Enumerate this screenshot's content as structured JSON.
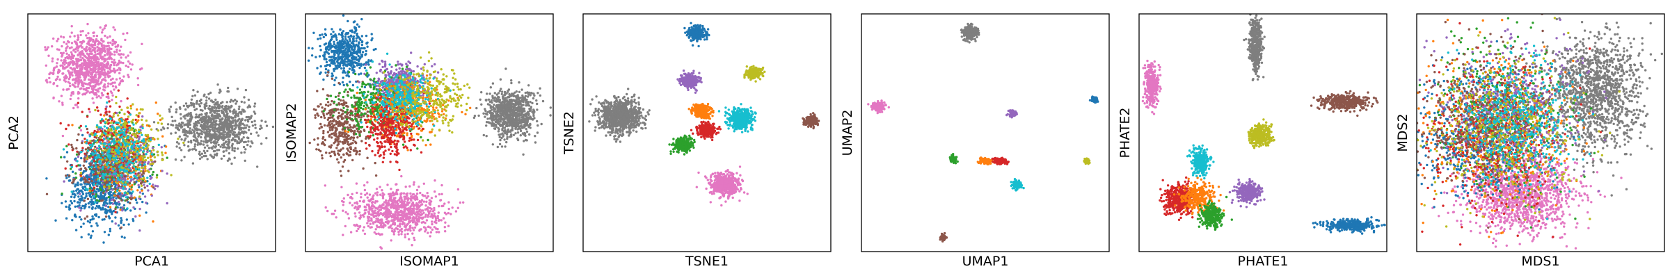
{
  "palette": {
    "blue": "#1f77b4",
    "orange": "#ff7f0e",
    "green": "#2ca02c",
    "red": "#d62728",
    "purple": "#9467bd",
    "brown": "#8c564b",
    "pink": "#e377c2",
    "gray": "#7f7f7f",
    "olive": "#bcbd22",
    "cyan": "#17becf"
  },
  "chart_data": [
    {
      "type": "scatter",
      "xlabel": "PCA1",
      "ylabel": "PCA2",
      "xlim": [
        0,
        100
      ],
      "ylim": [
        0,
        100
      ],
      "grid": false,
      "clusters": [
        {
          "color": "pink",
          "cx": 25,
          "cy": 78,
          "sx": 7,
          "sy": 7,
          "n": 900
        },
        {
          "color": "gray",
          "cx": 76,
          "cy": 53,
          "sx": 8,
          "sy": 6,
          "n": 900
        },
        {
          "color": "blue",
          "cx": 30,
          "cy": 27,
          "sx": 7,
          "sy": 8,
          "n": 650
        },
        {
          "color": "green",
          "cx": 35,
          "cy": 38,
          "sx": 7,
          "sy": 8,
          "n": 250
        },
        {
          "color": "orange",
          "cx": 39,
          "cy": 40,
          "sx": 7,
          "sy": 8,
          "n": 250
        },
        {
          "color": "red",
          "cx": 34,
          "cy": 44,
          "sx": 7,
          "sy": 8,
          "n": 250
        },
        {
          "color": "purple",
          "cx": 38,
          "cy": 37,
          "sx": 7,
          "sy": 8,
          "n": 250
        },
        {
          "color": "brown",
          "cx": 33,
          "cy": 36,
          "sx": 7,
          "sy": 8,
          "n": 250
        },
        {
          "color": "olive",
          "cx": 40,
          "cy": 43,
          "sx": 7,
          "sy": 8,
          "n": 250
        },
        {
          "color": "cyan",
          "cx": 36,
          "cy": 41,
          "sx": 7,
          "sy": 8,
          "n": 250
        }
      ]
    },
    {
      "type": "scatter",
      "xlabel": "ISOMAP1",
      "ylabel": "ISOMAP2",
      "xlim": [
        0,
        100
      ],
      "ylim": [
        0,
        100
      ],
      "grid": false,
      "clusters": [
        {
          "color": "blue",
          "cx": 16,
          "cy": 84,
          "sx": 5,
          "sy": 5,
          "n": 500
        },
        {
          "color": "pink",
          "cx": 37,
          "cy": 17,
          "sx": 9,
          "sy": 5,
          "n": 800
        },
        {
          "color": "gray",
          "cx": 83,
          "cy": 58,
          "sx": 5,
          "sy": 5,
          "n": 800
        },
        {
          "color": "brown",
          "cx": 15,
          "cy": 52,
          "sx": 5,
          "sy": 7,
          "n": 400
        },
        {
          "color": "purple",
          "cx": 38,
          "cy": 71,
          "sx": 5,
          "sy": 4,
          "n": 400
        },
        {
          "color": "green",
          "cx": 30,
          "cy": 62,
          "sx": 8,
          "sy": 6,
          "n": 350
        },
        {
          "color": "orange",
          "cx": 42,
          "cy": 60,
          "sx": 8,
          "sy": 6,
          "n": 350
        },
        {
          "color": "red",
          "cx": 34,
          "cy": 52,
          "sx": 5,
          "sy": 6,
          "n": 350
        },
        {
          "color": "cyan",
          "cx": 40,
          "cy": 64,
          "sx": 6,
          "sy": 5,
          "n": 300
        },
        {
          "color": "olive",
          "cx": 50,
          "cy": 65,
          "sx": 8,
          "sy": 6,
          "n": 300
        }
      ]
    },
    {
      "type": "scatter",
      "xlabel": "TSNE1",
      "ylabel": "TSNE2",
      "xlim": [
        0,
        100
      ],
      "ylim": [
        0,
        100
      ],
      "grid": false,
      "clusters": [
        {
          "color": "gray",
          "cx": 15,
          "cy": 57,
          "sx": 4,
          "sy": 3.5,
          "n": 900
        },
        {
          "color": "blue",
          "cx": 46,
          "cy": 92,
          "sx": 1.6,
          "sy": 1.4,
          "n": 300
        },
        {
          "color": "purple",
          "cx": 43,
          "cy": 72,
          "sx": 1.8,
          "sy": 1.4,
          "n": 300
        },
        {
          "color": "olive",
          "cx": 69,
          "cy": 75,
          "sx": 1.5,
          "sy": 1,
          "n": 250
        },
        {
          "color": "orange",
          "cx": 48,
          "cy": 59,
          "sx": 1.8,
          "sy": 1.4,
          "n": 300
        },
        {
          "color": "red",
          "cx": 50,
          "cy": 51,
          "sx": 1.8,
          "sy": 1.3,
          "n": 300
        },
        {
          "color": "green",
          "cx": 40,
          "cy": 45,
          "sx": 1.8,
          "sy": 1.4,
          "n": 300
        },
        {
          "color": "cyan",
          "cx": 64,
          "cy": 56,
          "sx": 2.5,
          "sy": 2.2,
          "n": 400
        },
        {
          "color": "brown",
          "cx": 92,
          "cy": 55,
          "sx": 1.3,
          "sy": 1,
          "n": 200
        },
        {
          "color": "pink",
          "cx": 57,
          "cy": 28,
          "sx": 3,
          "sy": 2.5,
          "n": 500
        }
      ]
    },
    {
      "type": "scatter",
      "xlabel": "UMAP1",
      "ylabel": "UMAP2",
      "xlim": [
        0,
        100
      ],
      "ylim": [
        0,
        100
      ],
      "grid": false,
      "clusters": [
        {
          "color": "gray",
          "cx": 44,
          "cy": 92,
          "sx": 1.4,
          "sy": 1.3,
          "n": 300
        },
        {
          "color": "pink",
          "cx": 7,
          "cy": 61,
          "sx": 1.2,
          "sy": 1,
          "n": 200
        },
        {
          "color": "blue",
          "cx": 94,
          "cy": 64,
          "sx": 0.6,
          "sy": 0.6,
          "n": 80
        },
        {
          "color": "purple",
          "cx": 61,
          "cy": 58,
          "sx": 0.8,
          "sy": 0.7,
          "n": 100
        },
        {
          "color": "green",
          "cx": 37,
          "cy": 39,
          "sx": 0.8,
          "sy": 0.6,
          "n": 80
        },
        {
          "color": "orange",
          "cx": 50,
          "cy": 38,
          "sx": 1.3,
          "sy": 0.6,
          "n": 120
        },
        {
          "color": "red",
          "cx": 56,
          "cy": 38,
          "sx": 1.3,
          "sy": 0.6,
          "n": 120
        },
        {
          "color": "olive",
          "cx": 91,
          "cy": 38,
          "sx": 0.5,
          "sy": 0.5,
          "n": 60
        },
        {
          "color": "cyan",
          "cx": 63,
          "cy": 28,
          "sx": 0.9,
          "sy": 0.9,
          "n": 120
        },
        {
          "color": "brown",
          "cx": 33,
          "cy": 6,
          "sx": 0.6,
          "sy": 0.6,
          "n": 60
        }
      ]
    },
    {
      "type": "scatter",
      "xlabel": "PHATE1",
      "ylabel": "PHATE2",
      "xlim": [
        0,
        100
      ],
      "ylim": [
        0,
        100
      ],
      "grid": false,
      "clusters": [
        {
          "color": "gray",
          "cx": 47,
          "cy": 87,
          "sx": 1.3,
          "sy": 5,
          "n": 450
        },
        {
          "color": "pink",
          "cx": 5,
          "cy": 70,
          "sx": 1.3,
          "sy": 4.5,
          "n": 350
        },
        {
          "color": "brown",
          "cx": 83,
          "cy": 63,
          "sx": 5,
          "sy": 1.6,
          "n": 350
        },
        {
          "color": "olive",
          "cx": 49,
          "cy": 49,
          "sx": 2.2,
          "sy": 2.2,
          "n": 350
        },
        {
          "color": "cyan",
          "cx": 25,
          "cy": 38,
          "sx": 1.8,
          "sy": 2.4,
          "n": 300
        },
        {
          "color": "red",
          "cx": 16,
          "cy": 22,
          "sx": 3,
          "sy": 3,
          "n": 450
        },
        {
          "color": "orange",
          "cx": 24,
          "cy": 23,
          "sx": 3.5,
          "sy": 3,
          "n": 300
        },
        {
          "color": "green",
          "cx": 29,
          "cy": 15,
          "sx": 2,
          "sy": 2.5,
          "n": 300
        },
        {
          "color": "purple",
          "cx": 44,
          "cy": 25,
          "sx": 2.4,
          "sy": 2,
          "n": 350
        },
        {
          "color": "blue",
          "cx": 85,
          "cy": 11,
          "sx": 5,
          "sy": 1.2,
          "n": 400
        }
      ]
    },
    {
      "type": "scatter",
      "xlabel": "MDS1",
      "ylabel": "MDS2",
      "xlim": [
        0,
        100
      ],
      "ylim": [
        0,
        100
      ],
      "grid": false,
      "clusters": [
        {
          "color": "gray",
          "cx": 72,
          "cy": 66,
          "sx": 9,
          "sy": 12,
          "n": 1300
        },
        {
          "color": "pink",
          "cx": 42,
          "cy": 24,
          "sx": 11,
          "sy": 8,
          "n": 1200
        },
        {
          "color": "blue",
          "cx": 25,
          "cy": 50,
          "sx": 13,
          "sy": 13,
          "n": 600
        },
        {
          "color": "green",
          "cx": 35,
          "cy": 57,
          "sx": 13,
          "sy": 15,
          "n": 450
        },
        {
          "color": "orange",
          "cx": 32,
          "cy": 52,
          "sx": 14,
          "sy": 15,
          "n": 450
        },
        {
          "color": "red",
          "cx": 30,
          "cy": 48,
          "sx": 14,
          "sy": 15,
          "n": 450
        },
        {
          "color": "purple",
          "cx": 38,
          "cy": 60,
          "sx": 13,
          "sy": 14,
          "n": 450
        },
        {
          "color": "brown",
          "cx": 28,
          "cy": 55,
          "sx": 14,
          "sy": 15,
          "n": 450
        },
        {
          "color": "olive",
          "cx": 36,
          "cy": 50,
          "sx": 14,
          "sy": 15,
          "n": 450
        },
        {
          "color": "cyan",
          "cx": 40,
          "cy": 55,
          "sx": 12,
          "sy": 14,
          "n": 450
        }
      ]
    }
  ]
}
